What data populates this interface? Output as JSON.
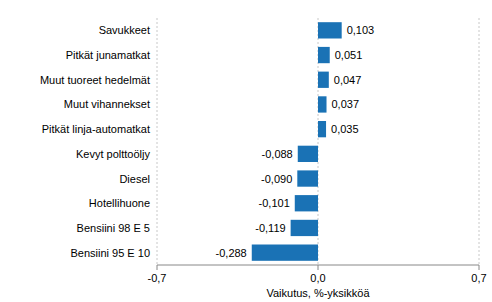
{
  "chart_data": {
    "type": "bar",
    "orientation": "horizontal",
    "categories": [
      "Savukkeet",
      "Pitkät junamatkat",
      "Muut tuoreet hedelmät",
      "Muut vihannekset",
      "Pitkät linja-automatkat",
      "Kevyt polttoöljy",
      "Diesel",
      "Hotellihuone",
      "Bensiini 98 E 5",
      "Bensiini 95 E 10"
    ],
    "values": [
      0.103,
      0.051,
      0.047,
      0.037,
      0.035,
      -0.088,
      -0.09,
      -0.101,
      -0.119,
      -0.288
    ],
    "value_labels": [
      "0,103",
      "0,051",
      "0,047",
      "0,037",
      "0,035",
      "-0,088",
      "-0,090",
      "-0,101",
      "-0,119",
      "-0,288"
    ],
    "data_labels": true,
    "color": "#1a72b5",
    "x_label": "Vaikutus, %-yksikköä",
    "xlim": [
      -0.7,
      0.7
    ],
    "xticks": [
      {
        "value": -0.7,
        "label": "-0,7"
      },
      {
        "value": 0,
        "label": "0,0"
      },
      {
        "value": 0.7,
        "label": "0,7"
      }
    ],
    "grid": true
  }
}
